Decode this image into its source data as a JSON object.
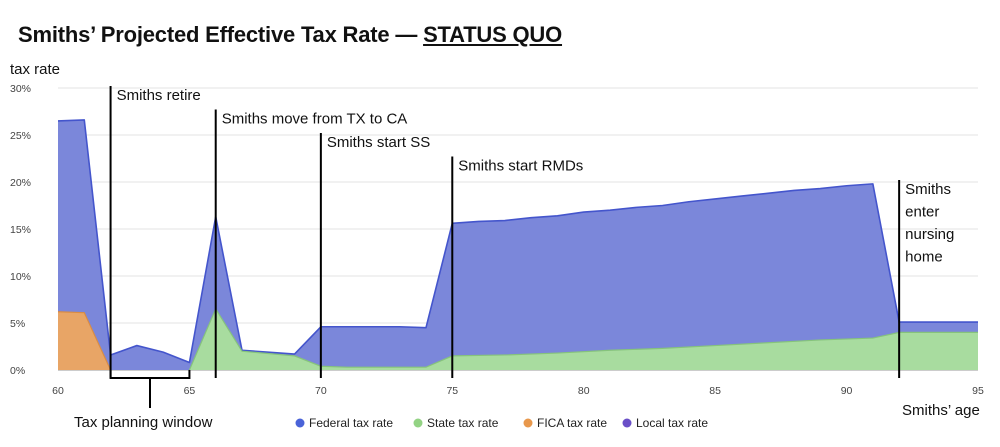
{
  "chart_data": {
    "type": "area",
    "title": "Smiths’ Projected Effective Tax Rate —",
    "title_emphasis": "STATUS QUO",
    "ylabel": "tax rate",
    "xlabel": "Smiths’ age",
    "xlim": [
      60,
      95
    ],
    "ylim": [
      0,
      30
    ],
    "x_ticks": [
      60,
      65,
      70,
      75,
      80,
      85,
      90,
      95
    ],
    "y_ticks": [
      0,
      5,
      10,
      15,
      20,
      25,
      30
    ],
    "y_tick_labels": [
      "0%",
      "5%",
      "10%",
      "15%",
      "20%",
      "25%",
      "30%"
    ],
    "colors": {
      "federal": "#7b87da",
      "federal_line": "#4455cc",
      "state": "#a8dc9f",
      "state_line": "#86c37c",
      "fica": "#e8a566",
      "fica_line": "#d98c44",
      "local": "#7357c7",
      "legend_federal": "#4a63d8",
      "legend_state": "#93d384",
      "legend_fica": "#e8984c",
      "legend_local": "#6a4fc7"
    },
    "series": [
      {
        "name": "FICA tax rate",
        "key": "fica",
        "x": [
          60,
          61,
          62
        ],
        "values": [
          6.2,
          6.1,
          0
        ]
      },
      {
        "name": "State tax rate",
        "key": "state",
        "x": [
          65,
          66,
          67,
          69,
          70,
          71,
          72,
          73,
          74,
          75,
          77,
          79,
          81,
          83,
          85,
          87,
          89,
          91,
          92,
          93,
          94,
          95
        ],
        "values": [
          0,
          6.5,
          2.0,
          1.5,
          0.4,
          0.3,
          0.3,
          0.3,
          0.3,
          1.5,
          1.6,
          1.8,
          2.1,
          2.3,
          2.6,
          2.9,
          3.2,
          3.4,
          4.0,
          4.0,
          4.0,
          4.0
        ]
      },
      {
        "name": "Federal tax rate (total stacked height)",
        "key": "total",
        "x": [
          60,
          61,
          62,
          63,
          64,
          65,
          66,
          67,
          68,
          69,
          70,
          71,
          72,
          73,
          74,
          75,
          76,
          77,
          78,
          79,
          80,
          81,
          82,
          83,
          84,
          85,
          86,
          87,
          88,
          89,
          90,
          91,
          92,
          93,
          94,
          95
        ],
        "values": [
          26.5,
          26.6,
          1.6,
          2.6,
          1.9,
          0.8,
          16.3,
          2.1,
          1.9,
          1.7,
          4.6,
          4.6,
          4.6,
          4.6,
          4.5,
          15.6,
          15.8,
          15.9,
          16.2,
          16.4,
          16.8,
          17.0,
          17.3,
          17.5,
          17.9,
          18.2,
          18.5,
          18.8,
          19.1,
          19.3,
          19.6,
          19.8,
          5.1,
          5.1,
          5.1,
          5.1
        ]
      }
    ],
    "legend": [
      {
        "key": "federal",
        "label": "Federal tax rate"
      },
      {
        "key": "state",
        "label": "State tax rate"
      },
      {
        "key": "fica",
        "label": "FICA tax rate"
      },
      {
        "key": "local",
        "label": "Local tax rate"
      }
    ],
    "annotations": [
      {
        "x": 62,
        "top": 30,
        "lines": [
          "Smiths retire"
        ]
      },
      {
        "x": 66,
        "top": 27.5,
        "lines": [
          "Smiths move from TX to CA"
        ]
      },
      {
        "x": 70,
        "top": 25,
        "lines": [
          "Smiths start SS"
        ]
      },
      {
        "x": 75,
        "top": 22.5,
        "lines": [
          "Smiths start RMDs"
        ]
      },
      {
        "x": 92,
        "top": 20,
        "lines": [
          "Smiths",
          "enter",
          "nursing",
          "home"
        ]
      }
    ],
    "tax_planning_window": {
      "x_start": 62,
      "x_end": 65,
      "label": "Tax planning window"
    }
  }
}
